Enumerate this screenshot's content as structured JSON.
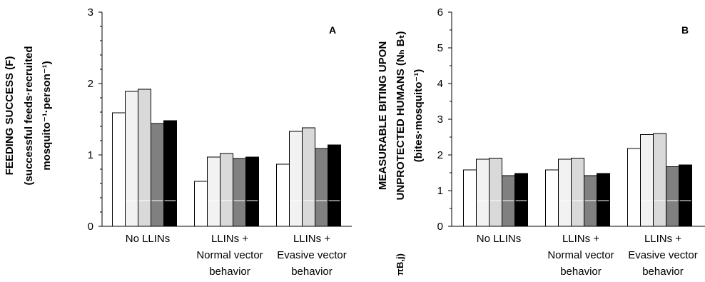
{
  "chart_data": [
    {
      "type": "bar",
      "panel_label": "A",
      "ylabel_lines": [
        "FEEDING SUCCESS (F)",
        "(successful feeds·recruited",
        "mosquito⁻¹·person⁻¹)"
      ],
      "ylim": [
        0,
        3
      ],
      "yticks": [
        "0",
        "1",
        "2",
        "3"
      ],
      "categories": [
        [
          "No LLINs"
        ],
        [
          "LLINs +",
          "Normal vector",
          "behavior"
        ],
        [
          "LLINs +",
          "Evasive vector",
          "behavior"
        ]
      ],
      "series": [
        {
          "color": "#ffffff",
          "values": [
            1.59,
            0.63,
            0.87
          ]
        },
        {
          "color": "#f2f2f2",
          "values": [
            1.89,
            0.97,
            1.33
          ]
        },
        {
          "color": "#d9d9d9",
          "values": [
            1.92,
            1.02,
            1.38
          ]
        },
        {
          "color": "#808080",
          "values": [
            1.44,
            0.95,
            1.09
          ]
        },
        {
          "color": "#000000",
          "values": [
            1.48,
            0.97,
            1.14
          ]
        }
      ],
      "grid": false,
      "legend": "none"
    },
    {
      "type": "bar",
      "panel_label": "B",
      "ylabel_lines": [
        "MEASURABLE BITING UPON",
        "UNPROTECTED HUMANS (Nₕ Bₜ)",
        "(bites·mosquito⁻¹)"
      ],
      "ylim": [
        0,
        6
      ],
      "yticks": [
        "0",
        "1",
        "2",
        "3",
        "4",
        "5",
        "6"
      ],
      "categories": [
        [
          "No LLINs"
        ],
        [
          "LLINs +",
          "Normal vector",
          "behavior"
        ],
        [
          "LLINs +",
          "Evasive vector",
          "behavior"
        ]
      ],
      "series": [
        {
          "color": "#ffffff",
          "values": [
            1.58,
            1.58,
            2.18
          ]
        },
        {
          "color": "#f2f2f2",
          "values": [
            1.88,
            1.88,
            2.57
          ]
        },
        {
          "color": "#d9d9d9",
          "values": [
            1.91,
            1.91,
            2.6
          ]
        },
        {
          "color": "#808080",
          "values": [
            1.42,
            1.42,
            1.67
          ]
        },
        {
          "color": "#000000",
          "values": [
            1.48,
            1.48,
            1.72
          ]
        }
      ],
      "grid": false,
      "legend": "none"
    }
  ],
  "stray_text": "πB,j)"
}
